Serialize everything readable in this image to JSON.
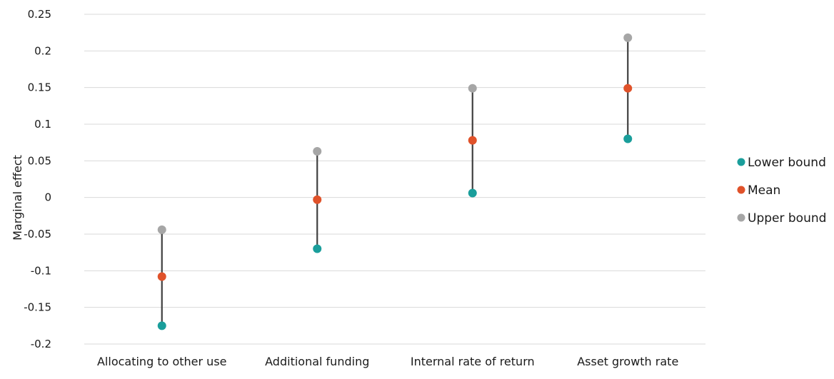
{
  "chart_data": {
    "type": "scatter",
    "title": "",
    "xlabel": "",
    "ylabel": "Marginal effect",
    "ylim": [
      -0.2,
      0.25
    ],
    "yticks": [
      "0.25",
      "0.2",
      "0.15",
      "0.1",
      "0.05",
      "0",
      "-0.05",
      "-0.1",
      "-0.15",
      "-0.2"
    ],
    "ytick_values": [
      0.25,
      0.2,
      0.15,
      0.1,
      0.05,
      0,
      -0.05,
      -0.1,
      -0.15,
      -0.2
    ],
    "categories": [
      "Allocating to other use",
      "Additional funding",
      "Internal rate of return",
      "Asset growth rate"
    ],
    "series": [
      {
        "name": "Lower bound",
        "color": "#1a9e9b",
        "values": [
          -0.175,
          -0.07,
          0.006,
          0.08
        ]
      },
      {
        "name": "Mean",
        "color": "#e0522a",
        "values": [
          -0.108,
          -0.003,
          0.078,
          0.149
        ]
      },
      {
        "name": "Upper bound",
        "color": "#a6a6a6",
        "values": [
          -0.044,
          0.063,
          0.149,
          0.218
        ]
      }
    ],
    "grid": true,
    "legend_position": "right"
  }
}
